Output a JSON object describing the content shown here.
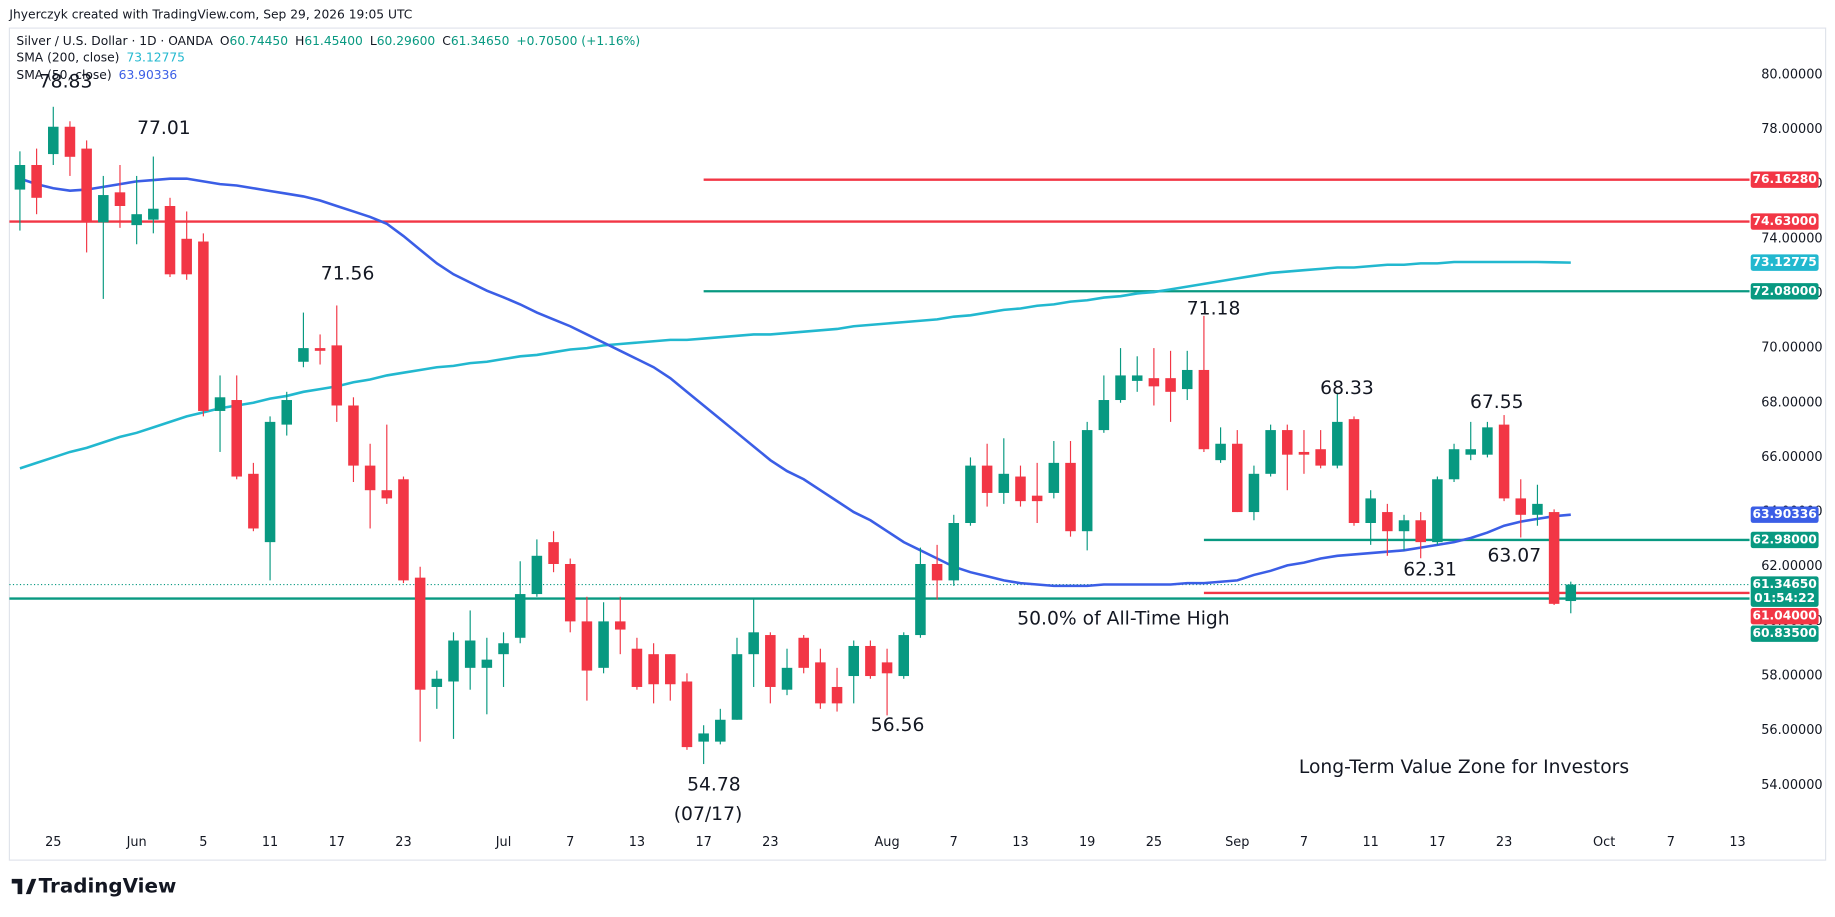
{
  "header": {
    "credit": "Jhyerczyk created with TradingView.com, Sep 29, 2026 19:05 UTC",
    "symbol": "Silver / U.S. Dollar · 1D · OANDA",
    "ohlc_legend": [
      {
        "key": "O",
        "label": "60.74450"
      },
      {
        "key": "H",
        "label": "61.45400"
      },
      {
        "key": "L",
        "label": "60.29600"
      },
      {
        "key": "C",
        "label": "61.34650"
      }
    ],
    "change": "+0.70500 (+1.16%)"
  },
  "footer": {
    "logo": "TradingView"
  },
  "chart_data": {
    "type": "candlestick",
    "up_color": "#089981",
    "down_color": "#f23645",
    "grid": false,
    "ylim": [
      52.42,
      81.71
    ],
    "yticks": [
      {
        "value": 80,
        "label": "80.00000"
      },
      {
        "value": 78,
        "label": "78.00000"
      },
      {
        "value": 76,
        "label": "76.00000"
      },
      {
        "value": 74,
        "label": "74.00000"
      },
      {
        "value": 72,
        "label": "72.00000"
      },
      {
        "value": 70,
        "label": "70.00000"
      },
      {
        "value": 68,
        "label": "68.00000"
      },
      {
        "value": 66,
        "label": "66.00000"
      },
      {
        "value": 64,
        "label": "64.00000"
      },
      {
        "value": 62,
        "label": "62.00000"
      },
      {
        "value": 60,
        "label": "60.00000"
      },
      {
        "value": 58,
        "label": "58.00000"
      },
      {
        "value": 56,
        "label": "56.00000"
      },
      {
        "value": 54,
        "label": "54.00000"
      }
    ],
    "categories": [
      null,
      null,
      "25",
      null,
      null,
      null,
      null,
      "Jun",
      null,
      null,
      null,
      "5",
      null,
      null,
      null,
      "11",
      null,
      null,
      null,
      "17",
      null,
      null,
      null,
      "23",
      null,
      null,
      null,
      null,
      null,
      "Jul",
      null,
      null,
      null,
      "7",
      null,
      null,
      null,
      "13",
      null,
      null,
      null,
      "17",
      null,
      null,
      null,
      "23",
      null,
      null,
      null,
      null,
      null,
      null,
      "Aug",
      null,
      null,
      null,
      "7",
      null,
      null,
      null,
      "13",
      null,
      null,
      null,
      "19",
      null,
      null,
      null,
      "25",
      null,
      null,
      null,
      null,
      "Sep",
      null,
      null,
      null,
      "7",
      null,
      null,
      null,
      "11",
      null,
      null,
      null,
      "17",
      null,
      null,
      null,
      "23",
      null,
      null,
      null,
      null,
      null,
      "Oct",
      null,
      null,
      null,
      "7",
      null,
      null,
      null,
      "13"
    ],
    "open": [
      75.8,
      76.7,
      77.1,
      78.1,
      77.3,
      74.6,
      75.7,
      74.5,
      74.7,
      75.2,
      74.0,
      73.9,
      67.7,
      68.1,
      65.4,
      62.9,
      67.2,
      69.5,
      70.0,
      70.1,
      67.9,
      65.7,
      64.8,
      65.2,
      61.6,
      57.6,
      57.8,
      58.3,
      58.3,
      58.8,
      59.4,
      61.0,
      62.9,
      62.1,
      60.0,
      58.3,
      60.0,
      59.0,
      58.8,
      58.8,
      57.8,
      55.6,
      55.6,
      56.4,
      58.8,
      59.5,
      57.5,
      59.4,
      58.5,
      57.6,
      58.0,
      59.1,
      58.5,
      58.0,
      59.5,
      62.1,
      61.5,
      63.6,
      65.7,
      64.7,
      65.3,
      64.6,
      64.7,
      65.8,
      63.3,
      67.0,
      68.1,
      68.8,
      68.9,
      68.9,
      68.5,
      69.2,
      65.9,
      66.5,
      64.0,
      65.4,
      67.0,
      66.2,
      66.3,
      65.7,
      67.4,
      63.6,
      64.0,
      63.3,
      63.7,
      62.9,
      65.2,
      66.1,
      66.1,
      67.2,
      64.5,
      63.9,
      64.0,
      60.7445,
      null,
      null,
      null,
      null,
      null,
      null,
      null,
      null,
      null,
      null
    ],
    "high": [
      77.2,
      77.3,
      78.83,
      78.3,
      77.6,
      76.3,
      76.7,
      76.3,
      77.01,
      75.5,
      75.0,
      74.2,
      69.0,
      69.0,
      65.8,
      67.5,
      68.4,
      71.3,
      70.5,
      71.56,
      68.2,
      66.5,
      67.2,
      65.3,
      62.0,
      58.2,
      59.6,
      60.4,
      59.4,
      59.6,
      62.2,
      63.0,
      63.3,
      62.3,
      60.9,
      60.7,
      60.9,
      59.4,
      59.2,
      58.8,
      58.1,
      56.2,
      56.8,
      59.4,
      60.8,
      59.6,
      59.0,
      59.5,
      59.0,
      58.3,
      59.3,
      59.3,
      59.0,
      59.6,
      62.7,
      62.8,
      63.9,
      66.0,
      66.5,
      66.7,
      65.7,
      65.8,
      66.6,
      66.6,
      67.3,
      69.0,
      70.0,
      69.7,
      70.0,
      69.9,
      69.9,
      71.18,
      67.1,
      67.0,
      65.7,
      67.2,
      67.2,
      67.0,
      67.0,
      68.33,
      67.5,
      64.8,
      64.3,
      63.9,
      64.0,
      65.3,
      66.5,
      67.3,
      67.3,
      67.55,
      65.2,
      65.0,
      64.1,
      61.454,
      null,
      null,
      null,
      null,
      null,
      null,
      null,
      null,
      null,
      null
    ],
    "low": [
      74.3,
      74.9,
      76.7,
      76.3,
      73.5,
      71.8,
      74.4,
      73.8,
      74.2,
      72.6,
      72.5,
      67.5,
      66.2,
      65.2,
      63.3,
      61.5,
      66.8,
      69.3,
      69.4,
      67.3,
      65.1,
      63.4,
      64.3,
      61.4,
      55.6,
      56.8,
      55.7,
      57.5,
      56.6,
      57.6,
      59.2,
      60.9,
      61.8,
      59.6,
      57.1,
      58.1,
      58.8,
      57.5,
      57.0,
      57.1,
      55.3,
      54.78,
      55.5,
      56.4,
      57.6,
      57.0,
      57.3,
      58.1,
      56.8,
      56.7,
      57.0,
      57.9,
      56.56,
      57.9,
      59.4,
      60.8,
      61.3,
      63.5,
      64.2,
      64.3,
      64.2,
      63.6,
      64.5,
      63.1,
      62.6,
      66.9,
      68.0,
      68.4,
      67.9,
      67.3,
      68.1,
      66.2,
      65.8,
      64.0,
      63.7,
      65.3,
      64.8,
      65.4,
      65.6,
      65.6,
      63.5,
      62.8,
      62.4,
      62.6,
      62.31,
      62.8,
      65.1,
      65.9,
      66.0,
      64.4,
      63.07,
      63.5,
      60.6,
      60.296,
      null,
      null,
      null,
      null,
      null,
      null,
      null,
      null,
      null,
      null
    ],
    "close": [
      76.7,
      75.5,
      78.1,
      77.0,
      74.6,
      75.6,
      75.2,
      74.9,
      75.1,
      72.7,
      72.7,
      67.7,
      68.2,
      65.3,
      63.4,
      67.3,
      68.1,
      70.0,
      69.9,
      67.9,
      65.7,
      64.8,
      64.5,
      61.5,
      57.5,
      57.9,
      59.3,
      59.3,
      58.6,
      59.2,
      61.0,
      62.4,
      62.1,
      60.0,
      58.2,
      60.0,
      59.7,
      57.6,
      57.7,
      57.7,
      55.4,
      55.9,
      56.4,
      58.8,
      59.6,
      57.6,
      58.3,
      58.3,
      57.0,
      57.0,
      59.1,
      58.0,
      58.1,
      59.5,
      62.1,
      61.5,
      63.6,
      65.7,
      64.7,
      65.4,
      64.4,
      64.4,
      65.8,
      63.3,
      67.0,
      68.1,
      69.0,
      69.0,
      68.6,
      68.4,
      69.2,
      66.3,
      66.5,
      64.0,
      65.4,
      67.0,
      66.1,
      66.1,
      65.7,
      67.3,
      63.6,
      64.5,
      63.3,
      63.7,
      62.9,
      65.2,
      66.3,
      66.3,
      67.1,
      64.5,
      63.9,
      64.3,
      60.6415,
      61.3465,
      null,
      null,
      null,
      null,
      null,
      null,
      null,
      null,
      null,
      null
    ],
    "series": [
      {
        "name": "SMA (200, close)",
        "color": "#22b8cf",
        "values": [
          65.6,
          65.8,
          66.0,
          66.2,
          66.35,
          66.55,
          66.75,
          66.9,
          67.1,
          67.3,
          67.5,
          67.65,
          67.8,
          67.9,
          68.0,
          68.15,
          68.25,
          68.4,
          68.5,
          68.6,
          68.75,
          68.85,
          69.0,
          69.1,
          69.2,
          69.3,
          69.35,
          69.45,
          69.5,
          69.6,
          69.7,
          69.75,
          69.85,
          69.95,
          70.0,
          70.1,
          70.15,
          70.2,
          70.25,
          70.3,
          70.3,
          70.35,
          70.4,
          70.45,
          70.5,
          70.5,
          70.55,
          70.6,
          70.65,
          70.7,
          70.8,
          70.85,
          70.9,
          70.95,
          71.0,
          71.05,
          71.15,
          71.2,
          71.3,
          71.4,
          71.45,
          71.55,
          71.6,
          71.7,
          71.75,
          71.85,
          71.9,
          72.0,
          72.05,
          72.15,
          72.25,
          72.35,
          72.45,
          72.55,
          72.65,
          72.75,
          72.8,
          72.85,
          72.9,
          72.95,
          72.95,
          73.0,
          73.05,
          73.05,
          73.1,
          73.1,
          73.15,
          73.15,
          73.15,
          73.15,
          73.15,
          73.15,
          73.14,
          73.12775,
          null,
          null,
          null,
          null,
          null,
          null,
          null,
          null,
          null,
          null
        ]
      },
      {
        "name": "SMA (50, close)",
        "color": "#3b5ee6",
        "values": [
          76.2,
          76.0,
          75.85,
          75.76,
          75.8,
          75.9,
          76.0,
          76.1,
          76.15,
          76.2,
          76.2,
          76.1,
          76.0,
          75.95,
          75.85,
          75.75,
          75.65,
          75.55,
          75.4,
          75.2,
          75.0,
          74.8,
          74.55,
          74.1,
          73.6,
          73.1,
          72.7,
          72.4,
          72.1,
          71.86,
          71.6,
          71.3,
          71.05,
          70.8,
          70.5,
          70.2,
          69.9,
          69.6,
          69.3,
          68.9,
          68.4,
          67.9,
          67.4,
          66.9,
          66.4,
          65.9,
          65.5,
          65.2,
          64.8,
          64.4,
          64.0,
          63.7,
          63.3,
          62.9,
          62.6,
          62.3,
          62.0,
          61.8,
          61.65,
          61.5,
          61.4,
          61.35,
          61.3,
          61.3,
          61.3,
          61.35,
          61.35,
          61.35,
          61.35,
          61.35,
          61.4,
          61.4,
          61.45,
          61.5,
          61.7,
          61.85,
          62.05,
          62.15,
          62.3,
          62.4,
          62.45,
          62.5,
          62.55,
          62.6,
          62.7,
          62.8,
          62.9,
          63.05,
          63.25,
          63.5,
          63.65,
          63.75,
          63.85,
          63.90336,
          null,
          null,
          null,
          null,
          null,
          null,
          null,
          null,
          null,
          null
        ]
      }
    ],
    "price_lines": [
      {
        "value": 76.1628,
        "label": "76.16280",
        "color": "#f23645",
        "start": 41
      },
      {
        "value": 74.63,
        "label": "74.63000",
        "color": "#f23645"
      },
      {
        "value": 72.08,
        "label": "72.08000",
        "color": "#089981",
        "start": 41
      },
      {
        "value": 62.98,
        "label": "62.98000",
        "color": "#089981",
        "start": 71
      },
      {
        "value": 61.04,
        "label": "61.04000",
        "color": "#f23645",
        "start": 71
      },
      {
        "value": 60.835,
        "label": "60.83500",
        "color": "#089981"
      }
    ],
    "current_price": {
      "value": 61.3465,
      "label": "61.34650",
      "countdown": "01:54:22",
      "color": "#089981"
    },
    "price_annotations": [
      78.83,
      77.01,
      71.56,
      71.18,
      68.33,
      67.55,
      62.31,
      63.07,
      56.56,
      54.78
    ],
    "text_annotations": [
      "(07/17)",
      "50.0% of All-Time High",
      "Long-Term Value Zone for Investors"
    ]
  }
}
